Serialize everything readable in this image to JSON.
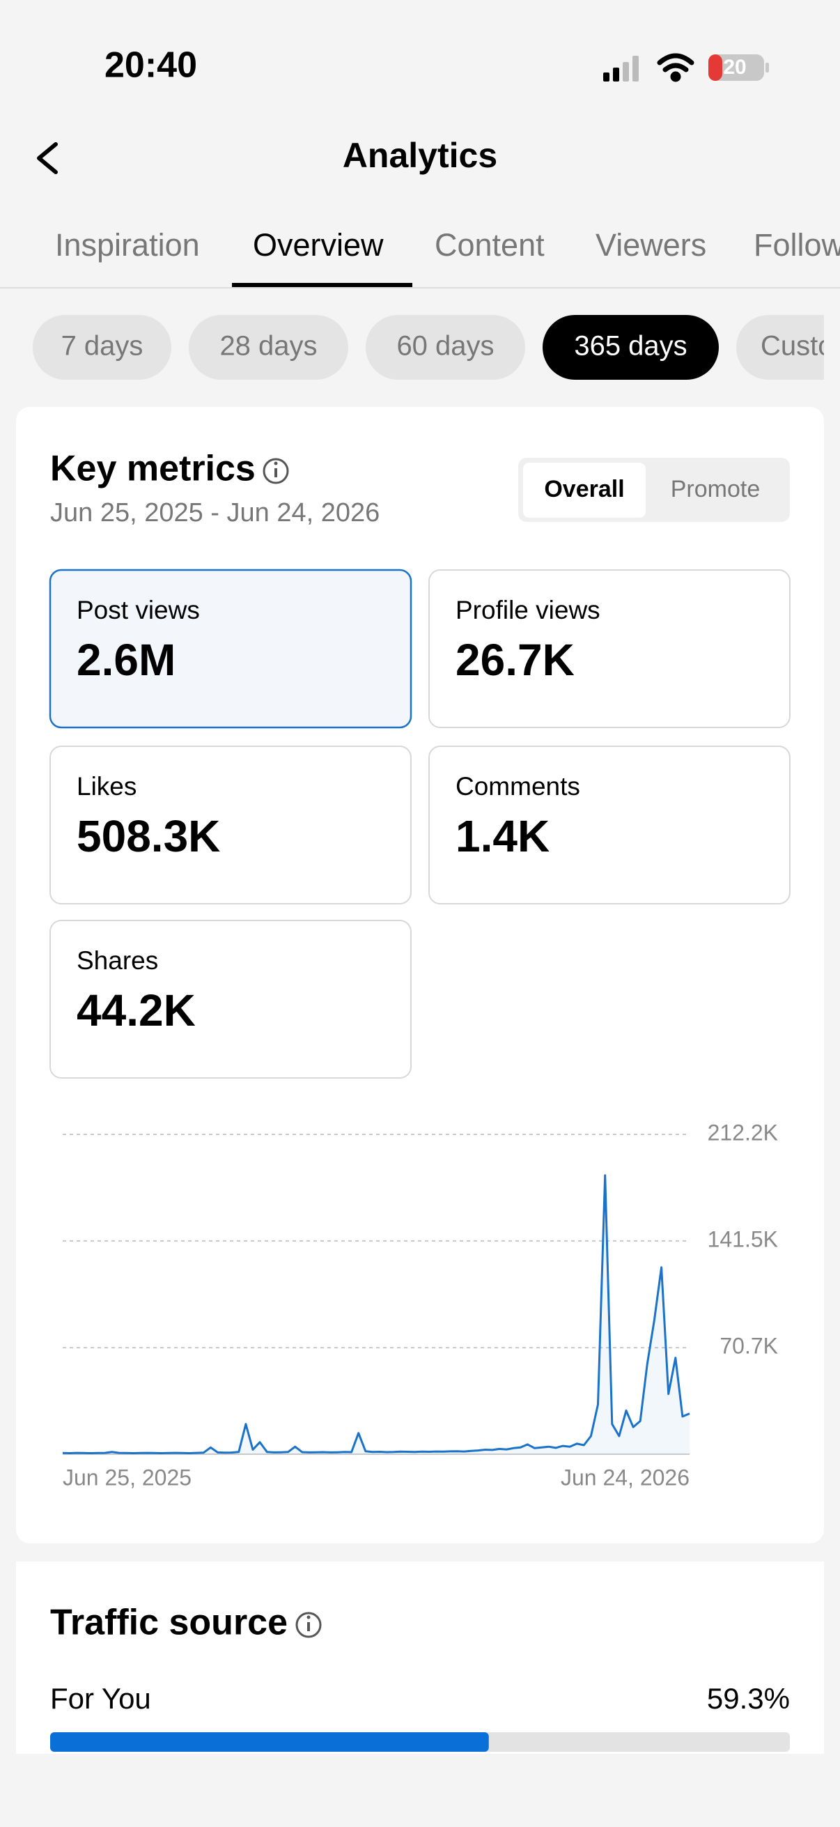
{
  "status_bar": {
    "time": "20:40",
    "battery": "20"
  },
  "header": {
    "title": "Analytics"
  },
  "tabs": [
    "Inspiration",
    "Overview",
    "Content",
    "Viewers",
    "Followers"
  ],
  "active_tab": 1,
  "ranges": [
    "7 days",
    "28 days",
    "60 days",
    "365 days",
    "Custom"
  ],
  "active_range": 3,
  "key_metrics": {
    "title": "Key metrics",
    "date_range": "Jun 25, 2025 - Jun 24, 2026",
    "toggle": [
      "Overall",
      "Promote"
    ],
    "active_toggle": 0,
    "metrics": [
      {
        "label": "Post views",
        "value": "2.6M"
      },
      {
        "label": "Profile views",
        "value": "26.7K"
      },
      {
        "label": "Likes",
        "value": "508.3K"
      },
      {
        "label": "Comments",
        "value": "1.4K"
      },
      {
        "label": "Shares",
        "value": "44.2K"
      }
    ],
    "active_metric": 0
  },
  "chart_data": {
    "type": "line",
    "color": "#1a73c8",
    "x_labels": [
      "Jun 25, 2025",
      "Jun 24, 2026"
    ],
    "ylim": [
      0,
      212200
    ],
    "yticks": [
      {
        "value": 70700,
        "label": "70.7K"
      },
      {
        "value": 141500,
        "label": "141.5K"
      },
      {
        "value": 212200,
        "label": "212.2K"
      }
    ],
    "grid": true,
    "values": [
      800,
      700,
      900,
      800,
      700,
      800,
      900,
      1500,
      900,
      800,
      700,
      800,
      900,
      800,
      700,
      800,
      900,
      800,
      700,
      900,
      1000,
      4500,
      1200,
      1000,
      1100,
      1500,
      20000,
      3000,
      8000,
      1500,
      1200,
      1300,
      1500,
      5000,
      1400,
      1200,
      1300,
      1400,
      1200,
      1300,
      1500,
      1400,
      14000,
      2000,
      1500,
      1600,
      1400,
      1500,
      1700,
      1600,
      1500,
      1700,
      1600,
      1800,
      1700,
      1900,
      2000,
      1800,
      2200,
      2500,
      3000,
      2800,
      3500,
      3200,
      4000,
      4500,
      6500,
      4000,
      4500,
      5000,
      4200,
      5500,
      5000,
      7000,
      6000,
      12000,
      33000,
      185000,
      20000,
      12000,
      29000,
      18000,
      22000,
      60000,
      89000,
      124000,
      40000,
      64000,
      25000,
      27000
    ]
  },
  "traffic_source": {
    "title": "Traffic source",
    "xlim": [
      0,
      100
    ],
    "items": [
      {
        "label": "For You",
        "value": 59.3,
        "value_label": "59.3%"
      }
    ]
  }
}
